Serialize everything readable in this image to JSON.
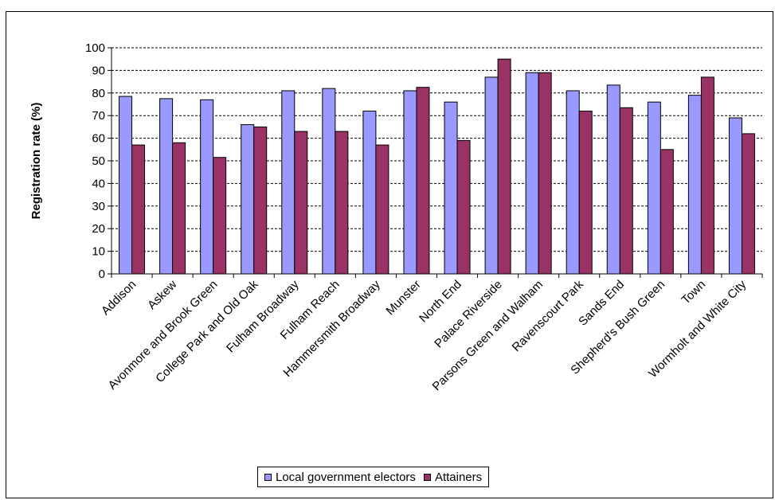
{
  "chart_data": {
    "type": "bar",
    "title": "",
    "xlabel": "",
    "ylabel": "Registration rate (%)",
    "ylim": [
      0,
      100
    ],
    "yticks": [
      0,
      10,
      20,
      30,
      40,
      50,
      60,
      70,
      80,
      90,
      100
    ],
    "grid": "horizontal dashed",
    "legend_position": "bottom",
    "categories": [
      "Addison",
      "Askew",
      "Avonmore and Brook Green",
      "College Park and Old Oak",
      "Fulham Broadway",
      "Fulham Reach",
      "Hammersmith Broadway",
      "Munster",
      "North End",
      "Palace Riverside",
      "Parsons Green and Walham",
      "Ravenscourt Park",
      "Sands End",
      "Shepherd's Bush Green",
      "Town",
      "Wormholt and White City"
    ],
    "series": [
      {
        "name": "Local government electors",
        "color": "#9999FF",
        "values": [
          78.5,
          77.5,
          77,
          66,
          81,
          82,
          72,
          81,
          76,
          87,
          89,
          81,
          83.5,
          76,
          79,
          69
        ]
      },
      {
        "name": "Attainers",
        "color": "#993366",
        "values": [
          57,
          58,
          51.5,
          65,
          63,
          63,
          57,
          82.5,
          59,
          95,
          89,
          72,
          73.5,
          55,
          87,
          62
        ]
      }
    ]
  }
}
